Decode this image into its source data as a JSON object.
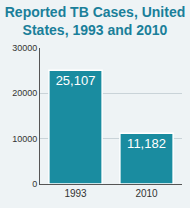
{
  "chart_data": {
    "type": "bar",
    "title": "Reported TB Cases, United States, 1993 and 2010",
    "categories": [
      "1993",
      "2010"
    ],
    "values": [
      25107,
      11182
    ],
    "value_labels": [
      "25,107",
      "11,182"
    ],
    "data_labels": true,
    "color": "#1a8ca0",
    "ylim": [
      0,
      30000
    ],
    "yticks": [
      0,
      10000,
      20000,
      30000
    ],
    "grid": true
  }
}
